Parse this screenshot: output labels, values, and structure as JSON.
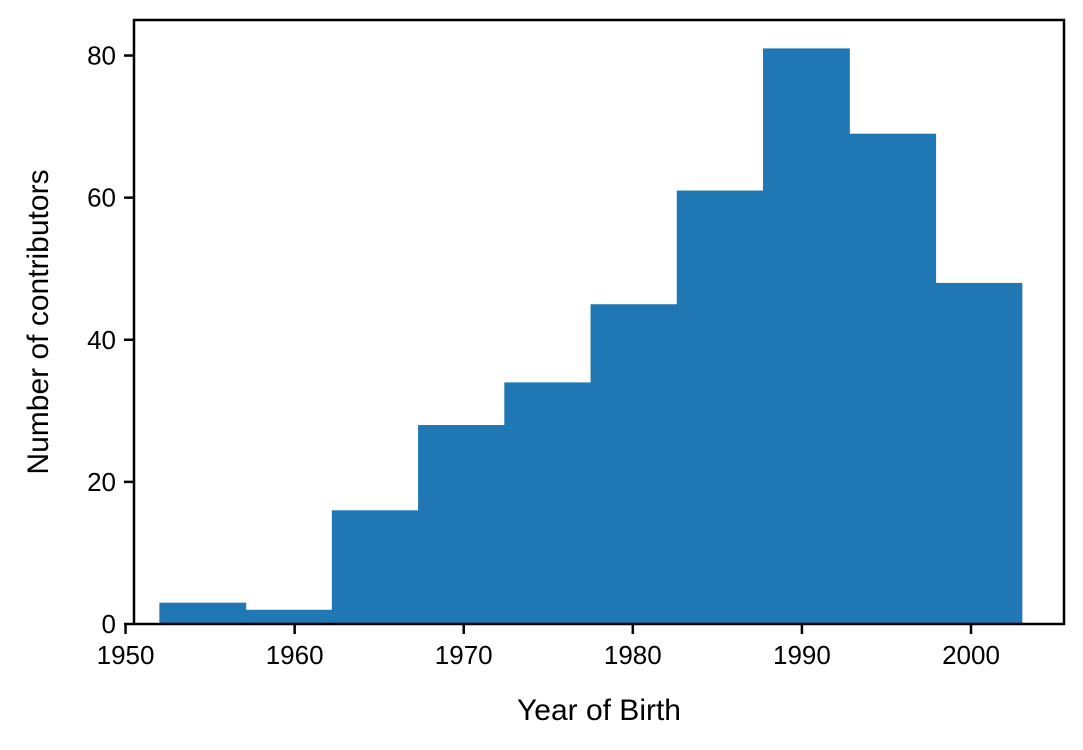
{
  "chart_data": {
    "type": "bar",
    "title": "",
    "xlabel": "Year of Birth",
    "ylabel": "Number of contributors",
    "bin_edges": [
      1952,
      1957.1,
      1962.2,
      1967.3,
      1972.4,
      1977.5,
      1982.6,
      1987.7,
      1992.8,
      1997.9,
      2003
    ],
    "values": [
      3,
      2,
      16,
      28,
      34,
      45,
      61,
      81,
      69,
      48
    ],
    "xlim": [
      1950.5,
      2005.5
    ],
    "ylim": [
      0,
      85
    ],
    "xticks": [
      1950,
      1960,
      1970,
      1980,
      1990,
      2000
    ],
    "yticks": [
      0,
      20,
      40,
      60,
      80
    ],
    "bar_color": "#1f77b4",
    "grid": false,
    "legend": "none"
  }
}
